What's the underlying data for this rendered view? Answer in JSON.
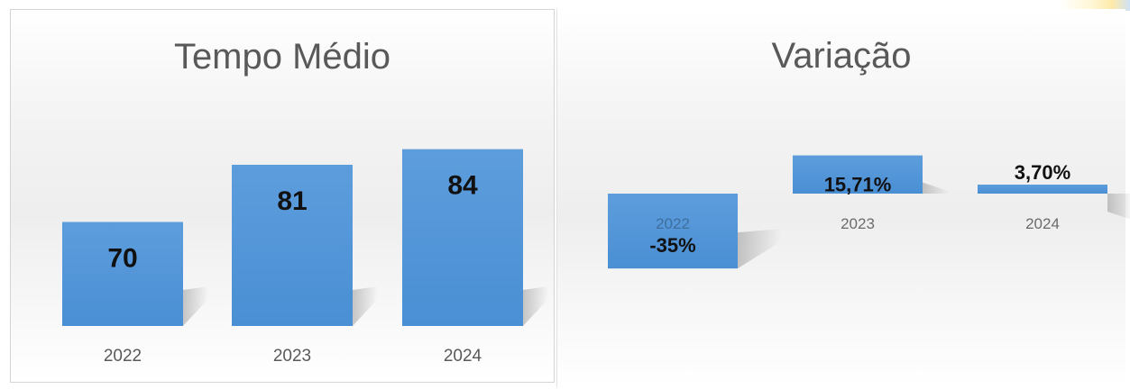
{
  "chart_data": [
    {
      "type": "bar",
      "title": "Tempo Médio",
      "categories": [
        "2022",
        "2023",
        "2024"
      ],
      "values": [
        70,
        81,
        84
      ],
      "data_labels": [
        "70",
        "81",
        "84"
      ],
      "ylim": [
        50,
        90
      ],
      "grid": false,
      "legend": "none",
      "bar_color": "#4a8fd4"
    },
    {
      "type": "bar",
      "title": "Variação",
      "categories": [
        "2022",
        "2023",
        "2024"
      ],
      "values": [
        -35,
        15.71,
        3.7
      ],
      "data_labels": [
        "-35%",
        "15,71%",
        "3,70%"
      ],
      "ylim": [
        -50,
        25
      ],
      "grid": false,
      "legend": "none",
      "bar_color": "#4a8fd4"
    }
  ]
}
